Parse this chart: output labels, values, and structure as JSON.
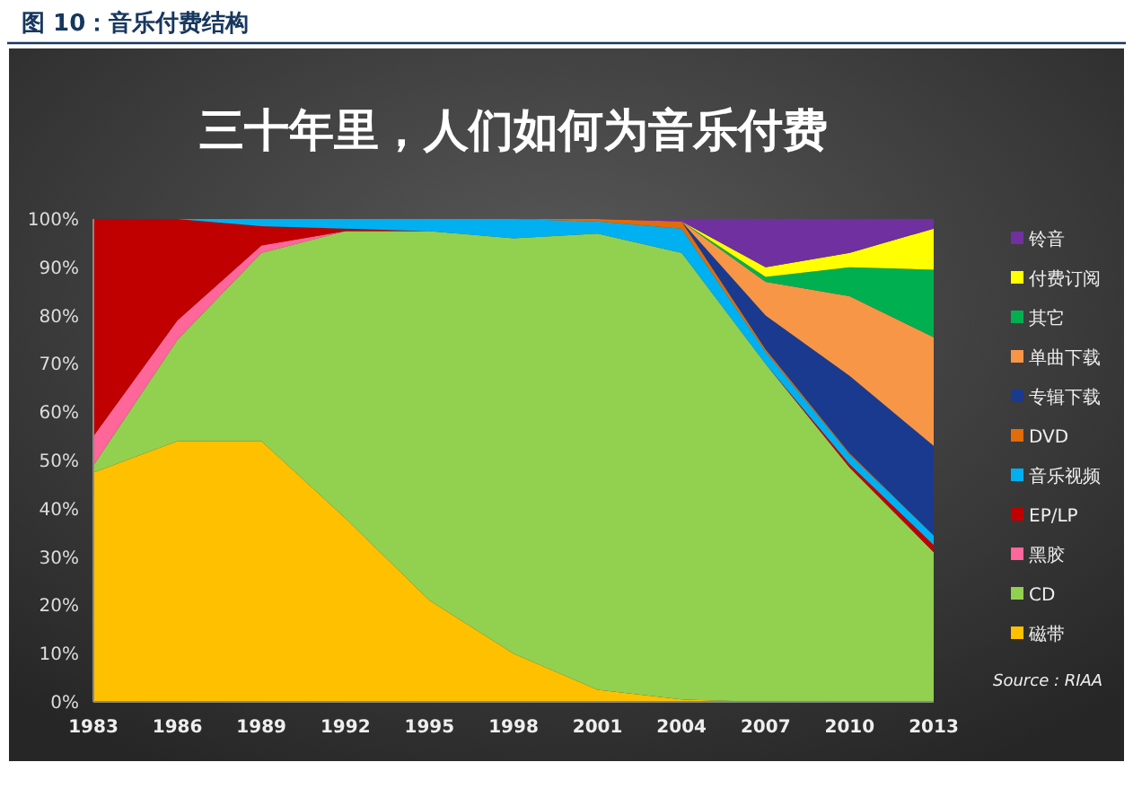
{
  "chart_data": {
    "type": "area",
    "title": "图 10：音乐付费结构",
    "subtitle": "三十年里，人们如何为音乐付费",
    "categories": [
      "1983",
      "1986",
      "1989",
      "1992",
      "1995",
      "1998",
      "2001",
      "2004",
      "2007",
      "2010",
      "2013"
    ],
    "stacked": true,
    "ylim": [
      0,
      100
    ],
    "yticks": [
      {
        "value": 0,
        "label": "0%"
      },
      {
        "value": 10,
        "label": "10%"
      },
      {
        "value": 20,
        "label": "20%"
      },
      {
        "value": 30,
        "label": "30%"
      },
      {
        "value": 40,
        "label": "40%"
      },
      {
        "value": 50,
        "label": "50%"
      },
      {
        "value": 60,
        "label": "60%"
      },
      {
        "value": 70,
        "label": "70%"
      },
      {
        "value": 80,
        "label": "80%"
      },
      {
        "value": 90,
        "label": "90%"
      },
      {
        "value": 100,
        "label": "100%"
      }
    ],
    "grid": false,
    "legend": "right",
    "series": [
      {
        "name": "磁带",
        "color": "#ffc000",
        "values": [
          47.5,
          54,
          54,
          38,
          21,
          10,
          2.5,
          0.5,
          0,
          null,
          null
        ]
      },
      {
        "name": "CD",
        "color": "#92d050",
        "values": [
          1.5,
          21,
          39,
          59.5,
          76.5,
          86,
          94.5,
          92.5,
          70,
          48.5,
          31
        ]
      },
      {
        "name": "黑胶",
        "color": "#ff6699",
        "values": [
          6,
          4,
          1.5,
          0,
          null,
          null,
          null,
          null,
          null,
          null,
          null
        ]
      },
      {
        "name": "EP/LP",
        "color": "#c00000",
        "values": [
          45,
          21,
          4,
          0.5,
          0,
          null,
          null,
          null,
          0,
          0.7,
          1.5
        ]
      },
      {
        "name": "音乐视频",
        "color": "#00b0f0",
        "values": [
          null,
          0,
          1.5,
          2,
          2.5,
          4,
          2.5,
          5,
          2.5,
          2,
          2
        ]
      },
      {
        "name": "DVD",
        "color": "#e26b0a",
        "values": [
          null,
          null,
          null,
          null,
          null,
          0,
          0.5,
          1.5,
          0.5,
          0.3,
          0
        ]
      },
      {
        "name": "专辑下载",
        "color": "#1a3a8f",
        "values": [
          null,
          null,
          null,
          null,
          null,
          null,
          null,
          0,
          7,
          16,
          18.5
        ]
      },
      {
        "name": "单曲下载",
        "color": "#f79646",
        "values": [
          null,
          null,
          null,
          null,
          null,
          null,
          null,
          0,
          7,
          16.5,
          22.5
        ]
      },
      {
        "name": "其它",
        "color": "#00b050",
        "values": [
          null,
          null,
          null,
          null,
          null,
          null,
          null,
          0,
          1,
          6,
          14
        ]
      },
      {
        "name": "付费订阅",
        "color": "#ffff00",
        "values": [
          null,
          null,
          null,
          null,
          null,
          null,
          null,
          0,
          2,
          3,
          8.5
        ]
      },
      {
        "name": "铃音",
        "color": "#7030a0",
        "values": [
          null,
          null,
          null,
          null,
          null,
          null,
          0,
          0.5,
          10,
          7,
          2
        ]
      }
    ],
    "annotations": [
      "Source : RIAA"
    ]
  }
}
